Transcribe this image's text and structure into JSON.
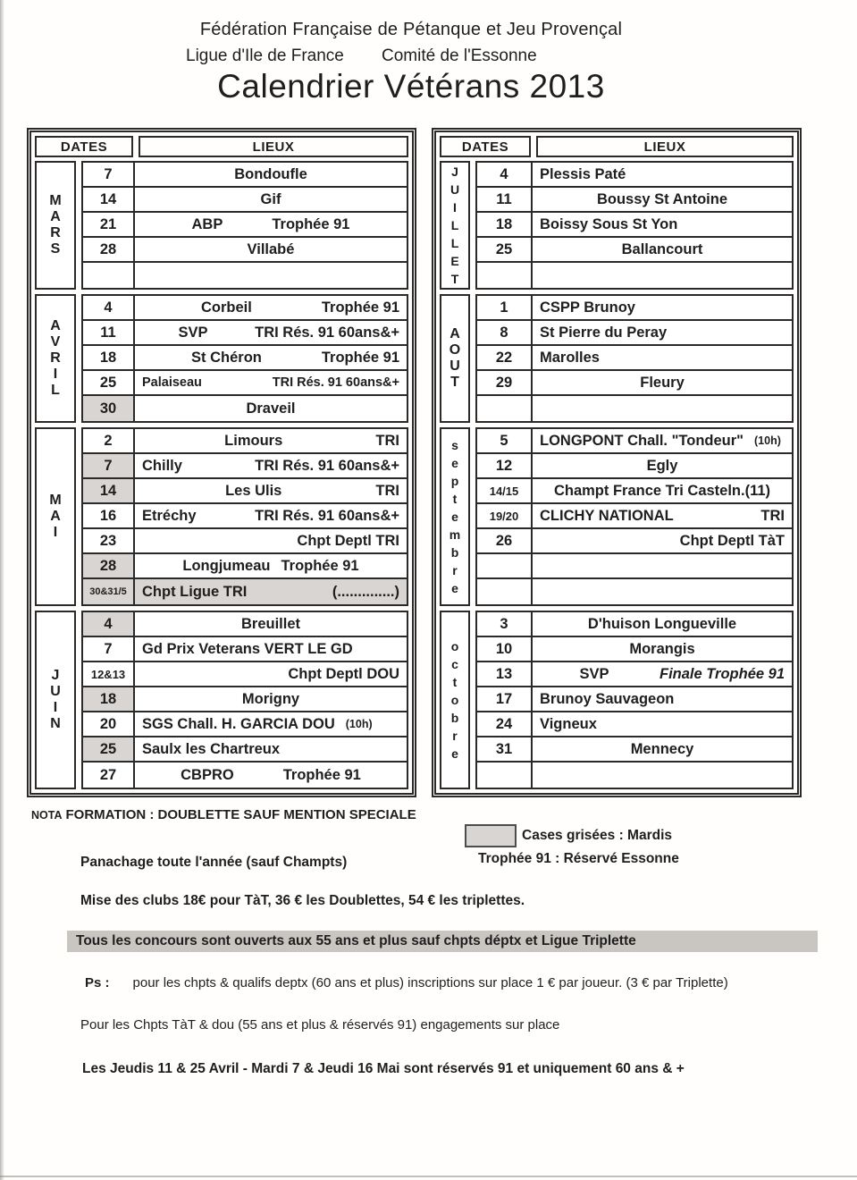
{
  "doc_header": {
    "line1": "Fédération Française de Pétanque et Jeu Provençal",
    "ligue": "Ligue d'Ile de France",
    "comite": "Comité de l'Essonne",
    "title": "Calendrier Vétérans 2013"
  },
  "table_header": {
    "dates": "DATES",
    "lieux": "LIEUX"
  },
  "calendar": {
    "left": [
      {
        "name": "MARS",
        "rows": [
          {
            "d": "7",
            "p": [
              [
                "Bondoufle",
                ""
              ]
            ],
            "lay": "c"
          },
          {
            "d": "14",
            "p": [
              [
                "Gif",
                ""
              ]
            ],
            "lay": "c"
          },
          {
            "d": "21",
            "p": [
              [
                "ABP",
                ""
              ],
              [
                "Trophée 91",
                ""
              ]
            ],
            "lay": "cw"
          },
          {
            "d": "28",
            "p": [
              [
                "Villabé",
                ""
              ]
            ],
            "lay": "c"
          },
          {
            "d": "",
            "p": [],
            "lay": "c"
          }
        ]
      },
      {
        "name": "AVRIL",
        "rows": [
          {
            "d": "4",
            "p": [
              [
                "Corbeil",
                ""
              ],
              [
                "Trophée 91",
                ""
              ]
            ],
            "lay": "sc"
          },
          {
            "d": "11",
            "p": [
              [
                "SVP",
                ""
              ],
              [
                "TRI  Rés. 91 60ans&+",
                ""
              ]
            ],
            "lay": "sc"
          },
          {
            "d": "18",
            "p": [
              [
                "St Chéron",
                ""
              ],
              [
                "Trophée 91",
                ""
              ]
            ],
            "lay": "sc"
          },
          {
            "d": "25",
            "p": [
              [
                "Palaiseau",
                "sm2"
              ],
              [
                "TRI  Rés. 91 60ans&+",
                "sm2"
              ]
            ],
            "lay": "s"
          },
          {
            "d": "30",
            "dg": true,
            "p": [
              [
                "Draveil",
                ""
              ]
            ],
            "lay": "c"
          }
        ]
      },
      {
        "name": "MAI",
        "rows": [
          {
            "d": "2",
            "p": [
              [
                "Limours",
                ""
              ],
              [
                "TRI",
                ""
              ]
            ],
            "lay": "sc"
          },
          {
            "d": "7",
            "dg": true,
            "p": [
              [
                "Chilly",
                ""
              ],
              [
                "TRI  Rés. 91 60ans&+",
                ""
              ]
            ],
            "lay": "s"
          },
          {
            "d": "14",
            "dg": true,
            "p": [
              [
                "Les Ulis",
                ""
              ],
              [
                "TRI",
                ""
              ]
            ],
            "lay": "sc"
          },
          {
            "d": "16",
            "p": [
              [
                "Etréchy",
                ""
              ],
              [
                "TRI  Rés. 91 60ans&+",
                ""
              ]
            ],
            "lay": "s"
          },
          {
            "d": "23",
            "p": [
              [
                "Chpt Deptl TRI",
                ""
              ]
            ],
            "lay": "r"
          },
          {
            "d": "28",
            "dg": true,
            "p": [
              [
                "Longjumeau",
                ""
              ],
              [
                "Trophée 91",
                ""
              ]
            ],
            "lay": "c"
          },
          {
            "d": "30&31/5",
            "rg": true,
            "p": [
              [
                "Chpt Ligue TRI",
                ""
              ],
              [
                "(..............)",
                ""
              ]
            ],
            "lay": "s"
          }
        ]
      },
      {
        "name": "JUIN",
        "rows": [
          {
            "d": "4",
            "dg": true,
            "p": [
              [
                "Breuillet",
                ""
              ]
            ],
            "lay": "c"
          },
          {
            "d": "7",
            "p": [
              [
                "Gd Prix Veterans VERT LE GD",
                ""
              ]
            ],
            "lay": "l"
          },
          {
            "d": "12&13",
            "p": [
              [
                "Chpt Deptl DOU",
                ""
              ]
            ],
            "lay": "r"
          },
          {
            "d": "18",
            "dg": true,
            "p": [
              [
                "Morigny",
                ""
              ]
            ],
            "lay": "c"
          },
          {
            "d": "20",
            "p": [
              [
                "SGS  Chall. H. GARCIA DOU",
                ""
              ],
              [
                "(10h)",
                "sm"
              ]
            ],
            "lay": "l"
          },
          {
            "d": "25",
            "dg": true,
            "p": [
              [
                "Saulx les Chartreux",
                ""
              ]
            ],
            "lay": "l"
          },
          {
            "d": "27",
            "p": [
              [
                "CBPRO",
                ""
              ],
              [
                "Trophée 91",
                ""
              ]
            ],
            "lay": "cw"
          }
        ]
      }
    ],
    "right": [
      {
        "name": "JUILLET",
        "rows": [
          {
            "d": "4",
            "p": [
              [
                "Plessis Paté",
                ""
              ]
            ],
            "lay": "l"
          },
          {
            "d": "11",
            "p": [
              [
                "Boussy St Antoine",
                ""
              ]
            ],
            "lay": "c"
          },
          {
            "d": "18",
            "p": [
              [
                "Boissy Sous St Yon",
                ""
              ]
            ],
            "lay": "l"
          },
          {
            "d": "25",
            "p": [
              [
                "Ballancourt",
                ""
              ]
            ],
            "lay": "c"
          },
          {
            "d": "",
            "p": [],
            "lay": "c"
          }
        ]
      },
      {
        "name": "AOUT",
        "rows": [
          {
            "d": "1",
            "p": [
              [
                "CSPP Brunoy",
                ""
              ]
            ],
            "lay": "l"
          },
          {
            "d": "8",
            "p": [
              [
                "St Pierre du Peray",
                ""
              ]
            ],
            "lay": "l"
          },
          {
            "d": "22",
            "p": [
              [
                "Marolles",
                ""
              ]
            ],
            "lay": "l"
          },
          {
            "d": "29",
            "p": [
              [
                "Fleury",
                ""
              ]
            ],
            "lay": "c"
          },
          {
            "d": "",
            "p": [],
            "lay": "c"
          }
        ]
      },
      {
        "name": "septembre",
        "rows": [
          {
            "d": "5",
            "p": [
              [
                "LONGPONT Chall. \"Tondeur\"",
                ""
              ],
              [
                "(10h)",
                "sm"
              ]
            ],
            "lay": "l"
          },
          {
            "d": "12",
            "p": [
              [
                "Egly",
                ""
              ]
            ],
            "lay": "c"
          },
          {
            "d": "14/15",
            "p": [
              [
                "Champt France Tri Casteln.(11)",
                ""
              ]
            ],
            "lay": "c"
          },
          {
            "d": "19/20",
            "p": [
              [
                "CLICHY  NATIONAL",
                ""
              ],
              [
                "TRI",
                ""
              ]
            ],
            "lay": "s"
          },
          {
            "d": "26",
            "p": [
              [
                "Chpt Deptl TàT",
                ""
              ]
            ],
            "lay": "r"
          },
          {
            "d": "",
            "p": [],
            "lay": "c"
          },
          {
            "d": "",
            "p": [],
            "lay": "c"
          }
        ]
      },
      {
        "name": "octobre",
        "rows": [
          {
            "d": "3",
            "p": [
              [
                "D'huison Longueville",
                ""
              ]
            ],
            "lay": "c"
          },
          {
            "d": "10",
            "p": [
              [
                "Morangis",
                ""
              ]
            ],
            "lay": "c"
          },
          {
            "d": "13",
            "p": [
              [
                "SVP",
                ""
              ],
              [
                "Finale Trophée 91",
                "it"
              ]
            ],
            "lay": "sc"
          },
          {
            "d": "17",
            "p": [
              [
                "Brunoy Sauvageon",
                ""
              ]
            ],
            "lay": "l"
          },
          {
            "d": "24",
            "p": [
              [
                "Vigneux",
                ""
              ]
            ],
            "lay": "l"
          },
          {
            "d": "31",
            "p": [
              [
                "Mennecy",
                ""
              ]
            ],
            "lay": "c"
          },
          {
            "d": "",
            "p": [],
            "lay": "c"
          }
        ]
      }
    ]
  },
  "footer": {
    "nota_label": "NOTA",
    "nota_text": "FORMATION : DOUBLETTE SAUF MENTION SPECIALE",
    "legend_grey": "Cases grisées : Mardis",
    "legend_trophee": "Trophée 91 : Réservé Essonne",
    "panachage": "Panachage toute l'année  (sauf Champts)",
    "mise": "Mise des clubs  18€  pour TàT, 36 € les Doublettes, 54 € les triplettes.",
    "open_bar": "Tous les concours sont ouverts aux 55 ans et plus sauf chpts déptx et Ligue Triplette",
    "ps_label": "Ps :",
    "ps_text": "pour les chpts & qualifs deptx (60 ans et plus) inscriptions sur place 1 € par joueur. (3 € par Triplette)",
    "chpts_line": "Pour les Chpts TàT & dou (55 ans et plus  & réservés 91) engagements sur place",
    "jeudis_line": "Les Jeudis 11 & 25 Avril - Mardi 7 & Jeudi 16 Mai sont réservés 91 et uniquement 60 ans & +"
  },
  "colors": {
    "grey_cell": "#d9d5d2",
    "highlight_bar": "#c9c6c2",
    "border": "#2a2a2a"
  }
}
